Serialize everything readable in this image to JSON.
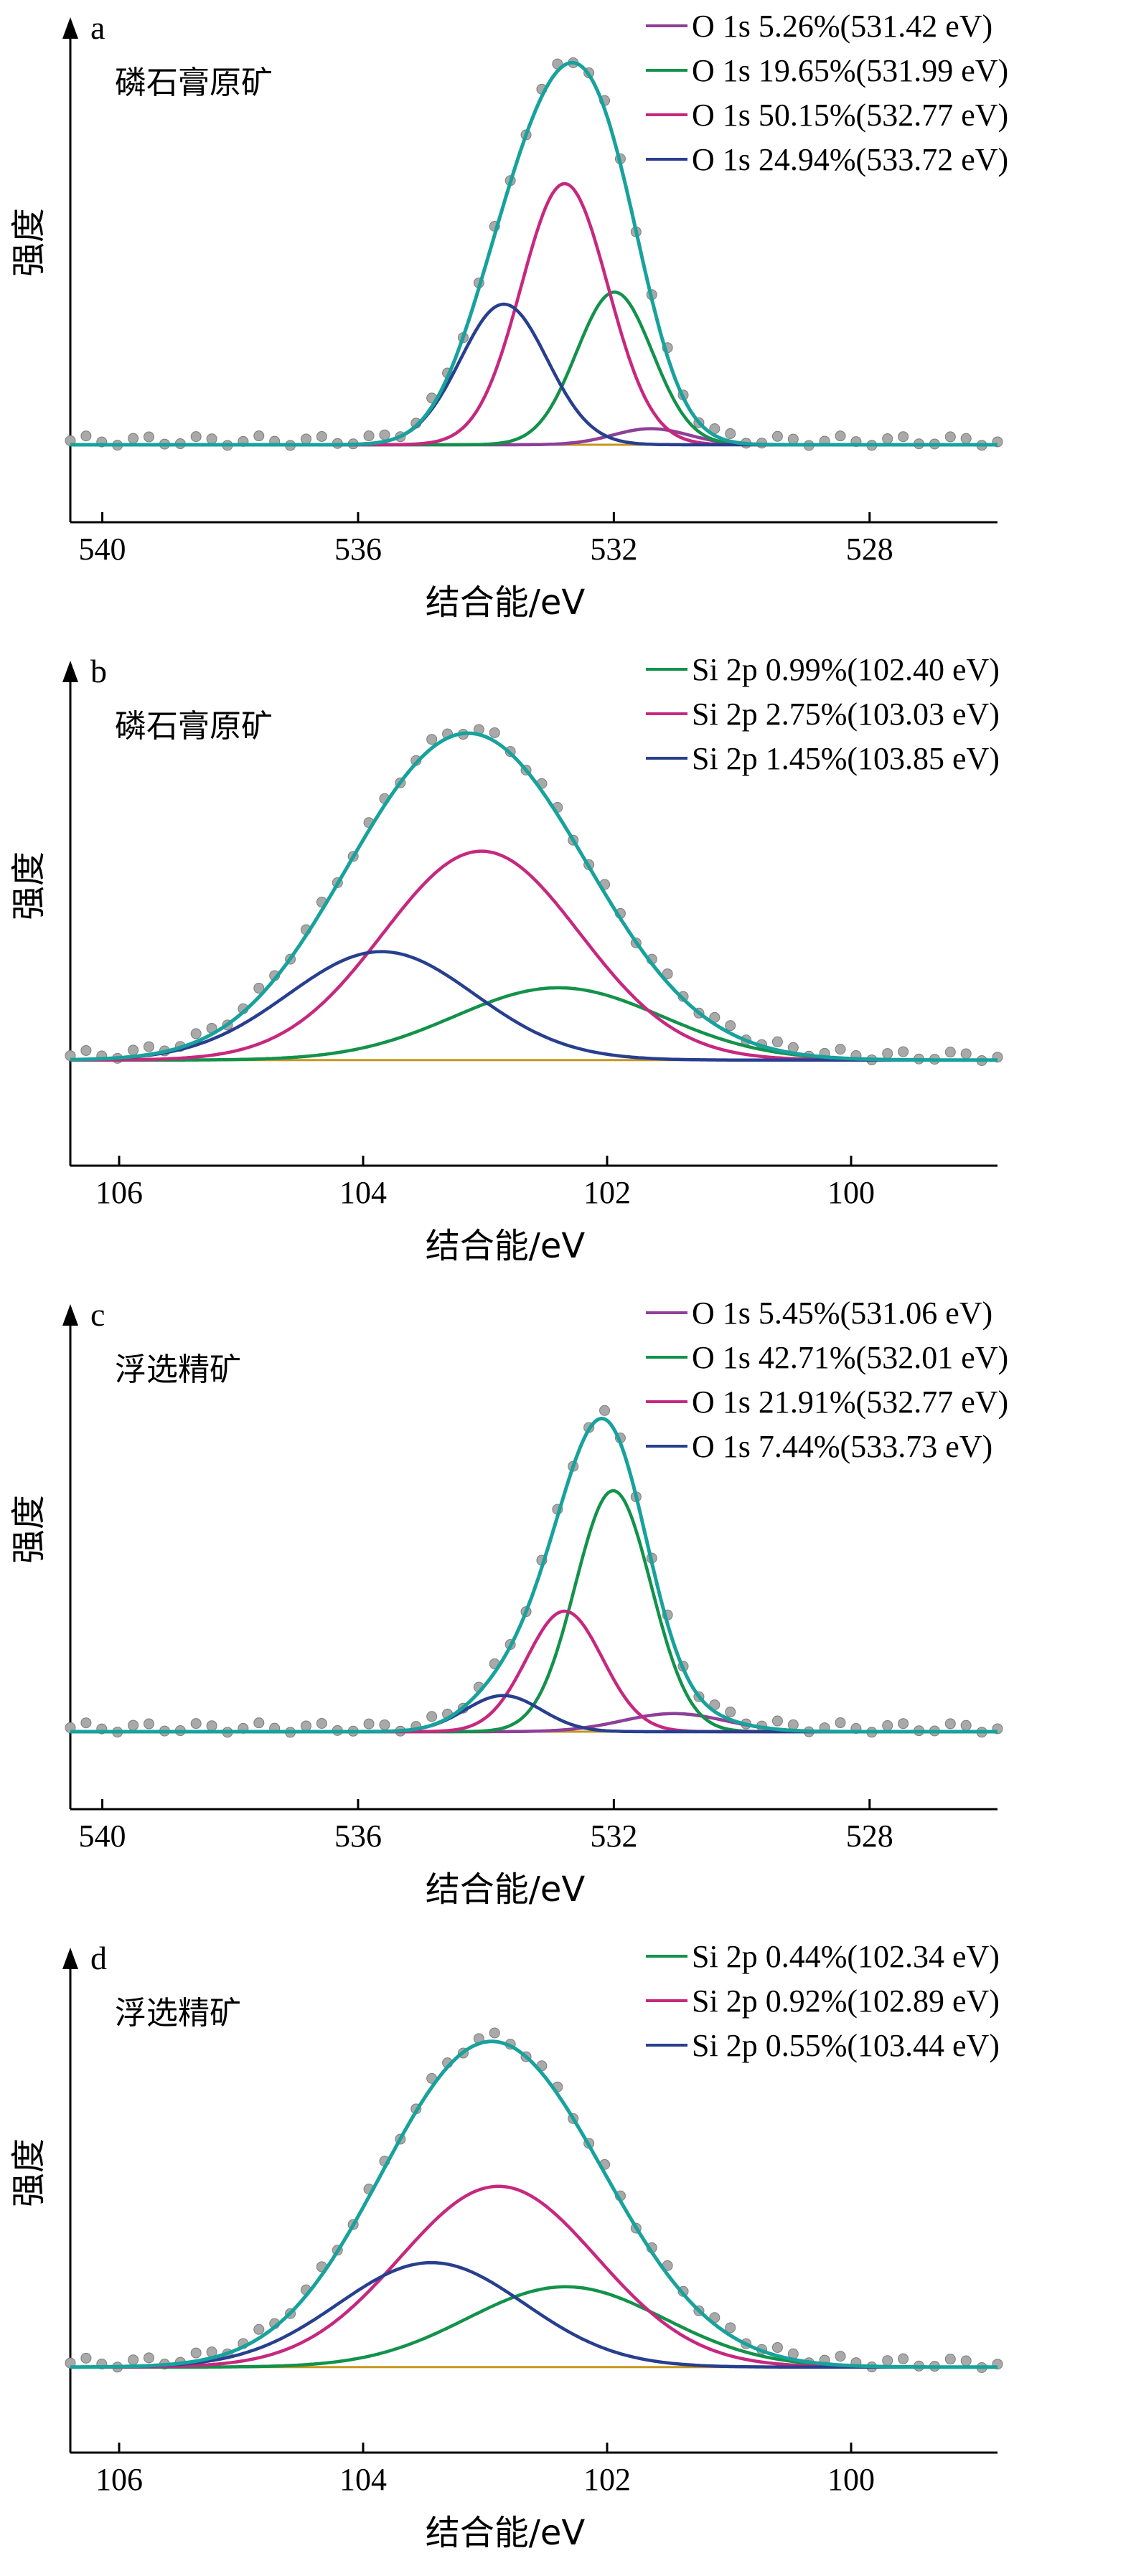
{
  "charts": [
    {
      "panel": "a",
      "sample": "磷石膏原矿",
      "ylabel": "强度",
      "xlabel": "结合能/eV",
      "ticks": [
        "540",
        "536",
        "532",
        "528"
      ],
      "legend": [
        "O 1s 5.26%(531.42 eV)",
        "O 1s 19.65%(531.99 eV)",
        "O 1s 50.15%(532.77 eV)",
        "O 1s 24.94%(533.72 eV)"
      ]
    },
    {
      "panel": "b",
      "sample": "磷石膏原矿",
      "ylabel": "强度",
      "xlabel": "结合能/eV",
      "ticks": [
        "106",
        "104",
        "102",
        "100"
      ],
      "legend": [
        "Si 2p 0.99%(102.40 eV)",
        "Si 2p 2.75%(103.03 eV)",
        "Si 2p 1.45%(103.85 eV)"
      ]
    },
    {
      "panel": "c",
      "sample": "浮选精矿",
      "ylabel": "强度",
      "xlabel": "结合能/eV",
      "ticks": [
        "540",
        "536",
        "532",
        "528"
      ],
      "legend": [
        "O 1s 5.45%(531.06 eV)",
        "O 1s 42.71%(532.01 eV)",
        "O 1s 21.91%(532.77 eV)",
        "O 1s 7.44%(533.73 eV)"
      ]
    },
    {
      "panel": "d",
      "sample": "浮选精矿",
      "ylabel": "强度",
      "xlabel": "结合能/eV",
      "ticks": [
        "106",
        "104",
        "102",
        "100"
      ],
      "legend": [
        "Si 2p 0.44%(102.34 eV)",
        "Si 2p 0.92%(102.89 eV)",
        "Si 2p 0.55%(103.44 eV)"
      ]
    }
  ],
  "chart_data": [
    {
      "type": "line",
      "xlim": [
        540.5,
        526
      ],
      "ylim": [
        0,
        1
      ],
      "baseline": 0.05,
      "xticks": [
        540,
        536,
        532,
        528
      ],
      "series": [
        {
          "name": "O 1s 5.26%(531.42 eV)",
          "center": 531.42,
          "height": 0.04,
          "fwhm": 1.4,
          "color": "#8e3f98"
        },
        {
          "name": "O 1s 19.65%(531.99 eV)",
          "center": 531.99,
          "height": 0.38,
          "fwhm": 1.4,
          "color": "#12924a"
        },
        {
          "name": "O 1s 50.15%(532.77 eV)",
          "center": 532.77,
          "height": 0.65,
          "fwhm": 1.6,
          "color": "#c7287f"
        },
        {
          "name": "O 1s 24.94%(533.72 eV)",
          "center": 533.72,
          "height": 0.35,
          "fwhm": 1.6,
          "color": "#283f8f"
        }
      ],
      "envelope_color": "#17a29c",
      "baseline_color": "#c8961e",
      "points_color": "#a9a9a9"
    },
    {
      "type": "line",
      "xlim": [
        106.4,
        98.8
      ],
      "ylim": [
        0,
        1
      ],
      "baseline": 0.12,
      "xticks": [
        106,
        104,
        102,
        100
      ],
      "series": [
        {
          "name": "Si 2p 0.99%(102.40 eV)",
          "center": 102.4,
          "height": 0.18,
          "fwhm": 2.0,
          "color": "#12924a"
        },
        {
          "name": "Si 2p 2.75%(103.03 eV)",
          "center": 103.03,
          "height": 0.52,
          "fwhm": 1.9,
          "color": "#c7287f"
        },
        {
          "name": "Si 2p 1.45%(103.85 eV)",
          "center": 103.85,
          "height": 0.27,
          "fwhm": 1.8,
          "color": "#283f8f"
        }
      ],
      "envelope_color": "#17a29c",
      "baseline_color": "#c8961e",
      "points_color": "#a9a9a9"
    },
    {
      "type": "line",
      "xlim": [
        540.5,
        526
      ],
      "ylim": [
        0,
        1
      ],
      "baseline": 0.05,
      "xticks": [
        540,
        536,
        532,
        528
      ],
      "series": [
        {
          "name": "O 1s 5.45%(531.06 eV)",
          "center": 531.06,
          "height": 0.045,
          "fwhm": 1.9,
          "color": "#8e3f98"
        },
        {
          "name": "O 1s 42.71%(532.01 eV)",
          "center": 532.01,
          "height": 0.6,
          "fwhm": 1.4,
          "color": "#12924a"
        },
        {
          "name": "O 1s 21.91%(532.77 eV)",
          "center": 532.77,
          "height": 0.3,
          "fwhm": 1.4,
          "color": "#c7287f"
        },
        {
          "name": "O 1s 7.44%(533.73 eV)",
          "center": 533.73,
          "height": 0.09,
          "fwhm": 1.4,
          "color": "#283f8f"
        }
      ],
      "envelope_color": "#17a29c",
      "baseline_color": "#c8961e",
      "points_color": "#a9a9a9"
    },
    {
      "type": "line",
      "xlim": [
        106.4,
        98.8
      ],
      "ylim": [
        0,
        1
      ],
      "baseline": 0.07,
      "xticks": [
        106,
        104,
        102,
        100
      ],
      "series": [
        {
          "name": "Si 2p 0.44%(102.34 eV)",
          "center": 102.34,
          "height": 0.2,
          "fwhm": 1.9,
          "color": "#12924a"
        },
        {
          "name": "Si 2p 0.92%(102.89 eV)",
          "center": 102.89,
          "height": 0.45,
          "fwhm": 1.9,
          "color": "#c7287f"
        },
        {
          "name": "Si 2p 0.55%(103.44 eV)",
          "center": 103.44,
          "height": 0.26,
          "fwhm": 1.8,
          "color": "#283f8f"
        }
      ],
      "envelope_color": "#17a29c",
      "baseline_color": "#c8961e",
      "points_color": "#a9a9a9"
    }
  ]
}
